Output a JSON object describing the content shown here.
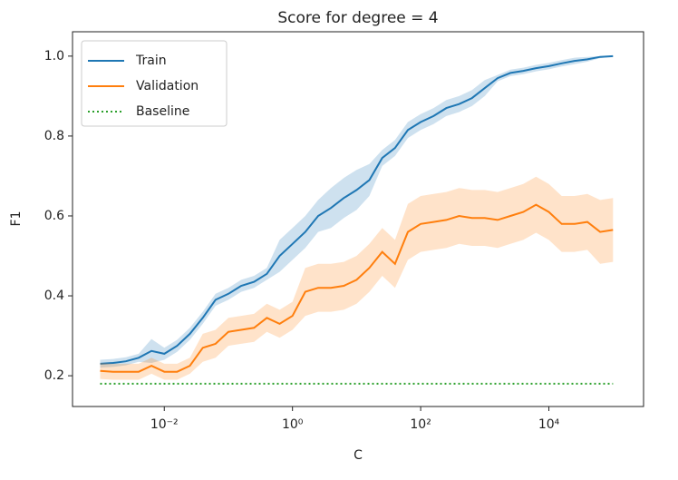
{
  "chart_data": {
    "type": "line",
    "title": "Score for degree = 4",
    "x_label": "C",
    "y_label": "F1",
    "log_x": true,
    "x": [
      0.001,
      0.001585,
      0.002512,
      0.003981,
      0.00631,
      0.01,
      0.01585,
      0.02512,
      0.03981,
      0.0631,
      0.1,
      0.1585,
      0.2512,
      0.3981,
      0.631,
      1,
      1.585,
      2.512,
      3.981,
      6.31,
      10,
      15.85,
      25.12,
      39.81,
      63.1,
      100,
      158.5,
      251.2,
      398.1,
      631,
      1000,
      1585,
      2512,
      3981,
      6310,
      10000,
      15850,
      25120,
      39810,
      63100,
      100000
    ],
    "series": [
      {
        "name": "Train",
        "color": "#1f77b4",
        "style": "solid",
        "values": [
          0.23,
          0.232,
          0.236,
          0.245,
          0.262,
          0.255,
          0.275,
          0.305,
          0.345,
          0.39,
          0.405,
          0.425,
          0.435,
          0.455,
          0.5,
          0.53,
          0.56,
          0.6,
          0.62,
          0.645,
          0.665,
          0.69,
          0.745,
          0.77,
          0.815,
          0.835,
          0.85,
          0.87,
          0.88,
          0.895,
          0.92,
          0.945,
          0.958,
          0.963,
          0.97,
          0.975,
          0.982,
          0.988,
          0.992,
          0.998,
          1.0
        ],
        "lower": [
          0.22,
          0.222,
          0.226,
          0.235,
          0.232,
          0.24,
          0.26,
          0.29,
          0.33,
          0.375,
          0.39,
          0.41,
          0.42,
          0.44,
          0.46,
          0.49,
          0.52,
          0.56,
          0.57,
          0.595,
          0.615,
          0.65,
          0.725,
          0.75,
          0.795,
          0.815,
          0.83,
          0.85,
          0.86,
          0.875,
          0.9,
          0.937,
          0.95,
          0.955,
          0.962,
          0.967,
          0.974,
          0.98,
          0.986,
          0.995,
          0.999
        ],
        "upper": [
          0.24,
          0.242,
          0.246,
          0.255,
          0.292,
          0.27,
          0.29,
          0.32,
          0.36,
          0.405,
          0.42,
          0.44,
          0.45,
          0.47,
          0.54,
          0.57,
          0.6,
          0.64,
          0.67,
          0.695,
          0.715,
          0.73,
          0.765,
          0.79,
          0.835,
          0.855,
          0.87,
          0.89,
          0.9,
          0.915,
          0.94,
          0.953,
          0.966,
          0.971,
          0.978,
          0.983,
          0.99,
          0.996,
          0.998,
          1.0,
          1.0
        ]
      },
      {
        "name": "Validation",
        "color": "#ff7f0e",
        "style": "solid",
        "values": [
          0.212,
          0.21,
          0.21,
          0.21,
          0.225,
          0.21,
          0.21,
          0.225,
          0.27,
          0.28,
          0.31,
          0.315,
          0.32,
          0.345,
          0.33,
          0.35,
          0.41,
          0.42,
          0.42,
          0.425,
          0.44,
          0.47,
          0.51,
          0.48,
          0.56,
          0.58,
          0.585,
          0.59,
          0.6,
          0.595,
          0.595,
          0.59,
          0.6,
          0.61,
          0.628,
          0.61,
          0.58,
          0.58,
          0.585,
          0.56,
          0.565
        ],
        "lower": [
          0.192,
          0.19,
          0.19,
          0.19,
          0.205,
          0.19,
          0.19,
          0.205,
          0.235,
          0.245,
          0.275,
          0.28,
          0.285,
          0.31,
          0.295,
          0.315,
          0.35,
          0.36,
          0.36,
          0.365,
          0.38,
          0.41,
          0.45,
          0.42,
          0.49,
          0.51,
          0.515,
          0.52,
          0.53,
          0.525,
          0.525,
          0.52,
          0.53,
          0.54,
          0.558,
          0.54,
          0.51,
          0.51,
          0.515,
          0.48,
          0.485
        ],
        "upper": [
          0.232,
          0.23,
          0.23,
          0.23,
          0.245,
          0.23,
          0.23,
          0.245,
          0.305,
          0.315,
          0.345,
          0.35,
          0.355,
          0.38,
          0.365,
          0.385,
          0.47,
          0.48,
          0.48,
          0.485,
          0.5,
          0.53,
          0.57,
          0.54,
          0.63,
          0.65,
          0.655,
          0.66,
          0.67,
          0.665,
          0.665,
          0.66,
          0.67,
          0.68,
          0.698,
          0.68,
          0.65,
          0.65,
          0.655,
          0.64,
          0.645
        ]
      },
      {
        "name": "Baseline",
        "color": "#2ca02c",
        "style": "dotted",
        "values": [
          0.18,
          0.18,
          0.18,
          0.18,
          0.18,
          0.18,
          0.18,
          0.18,
          0.18,
          0.18,
          0.18,
          0.18,
          0.18,
          0.18,
          0.18,
          0.18,
          0.18,
          0.18,
          0.18,
          0.18,
          0.18,
          0.18,
          0.18,
          0.18,
          0.18,
          0.18,
          0.18,
          0.18,
          0.18,
          0.18,
          0.18,
          0.18,
          0.18,
          0.18,
          0.18,
          0.18,
          0.18,
          0.18,
          0.18,
          0.18,
          0.18
        ]
      }
    ],
    "xlim": [
      0.00037,
      300000
    ],
    "xticks": [
      {
        "value": 0.01,
        "label": "10⁻²"
      },
      {
        "value": 1,
        "label": "10⁰"
      },
      {
        "value": 100,
        "label": "10²"
      },
      {
        "value": 10000,
        "label": "10⁴"
      }
    ],
    "ylim": [
      0.123,
      1.061
    ],
    "yticks": [
      0.2,
      0.4,
      0.6,
      0.8,
      {
        "value": 1,
        "label": "1.0"
      }
    ],
    "grid": false,
    "legend": "upper left"
  }
}
